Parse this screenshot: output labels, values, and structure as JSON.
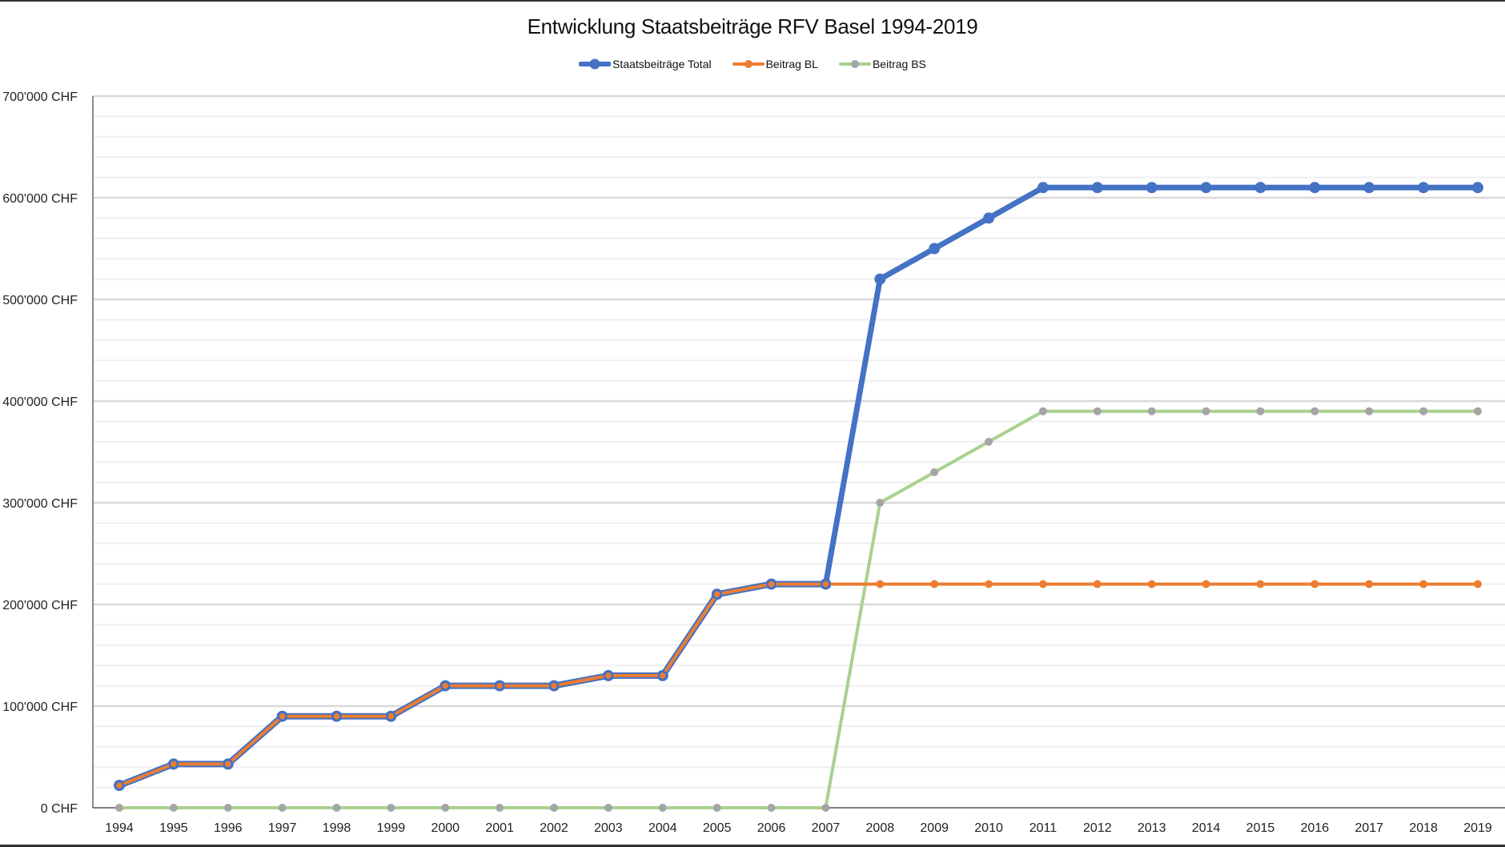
{
  "chart_data": {
    "type": "line",
    "title": "Entwicklung Staatsbeiträge  RFV Basel 1994-2019",
    "xlabel": "",
    "ylabel": "",
    "ylim": [
      0,
      700000
    ],
    "y_ticks": [
      {
        "value": 0,
        "label": "0 CHF"
      },
      {
        "value": 100000,
        "label": "100'000 CHF"
      },
      {
        "value": 200000,
        "label": "200'000 CHF"
      },
      {
        "value": 300000,
        "label": "300'000 CHF"
      },
      {
        "value": 400000,
        "label": "400'000 CHF"
      },
      {
        "value": 500000,
        "label": "500'000 CHF"
      },
      {
        "value": 600000,
        "label": "600'000 CHF"
      },
      {
        "value": 700000,
        "label": "700'000 CHF"
      }
    ],
    "minor_grid_step": 20000,
    "grid": true,
    "legend_position": "top",
    "categories": [
      "1994",
      "1995",
      "1996",
      "1997",
      "1998",
      "1999",
      "2000",
      "2001",
      "2002",
      "2003",
      "2004",
      "2005",
      "2006",
      "2007",
      "2008",
      "2009",
      "2010",
      "2011",
      "2012",
      "2013",
      "2014",
      "2015",
      "2016",
      "2017",
      "2018",
      "2019"
    ],
    "series": [
      {
        "name": "Staatsbeiträge Total",
        "color": "#4472C4",
        "marker_color": "#4472C4",
        "line_width": 7,
        "marker_radius": 7,
        "values": [
          22000,
          43000,
          43000,
          90000,
          90000,
          90000,
          120000,
          120000,
          120000,
          130000,
          130000,
          210000,
          220000,
          220000,
          520000,
          550000,
          580000,
          610000,
          610000,
          610000,
          610000,
          610000,
          610000,
          610000,
          610000,
          610000
        ]
      },
      {
        "name": "Beitrag BL",
        "color": "#ED7D31",
        "marker_color": "#ED7D31",
        "line_width": 4,
        "marker_radius": 5,
        "values": [
          22000,
          43000,
          43000,
          90000,
          90000,
          90000,
          120000,
          120000,
          120000,
          130000,
          130000,
          210000,
          220000,
          220000,
          220000,
          220000,
          220000,
          220000,
          220000,
          220000,
          220000,
          220000,
          220000,
          220000,
          220000,
          220000
        ]
      },
      {
        "name": "Beitrag BS",
        "color": "#A9D18E",
        "marker_color": "#A5A5A5",
        "line_width": 4,
        "marker_radius": 5,
        "values": [
          0,
          0,
          0,
          0,
          0,
          0,
          0,
          0,
          0,
          0,
          0,
          0,
          0,
          0,
          300000,
          330000,
          360000,
          390000,
          390000,
          390000,
          390000,
          390000,
          390000,
          390000,
          390000,
          390000
        ]
      }
    ]
  }
}
